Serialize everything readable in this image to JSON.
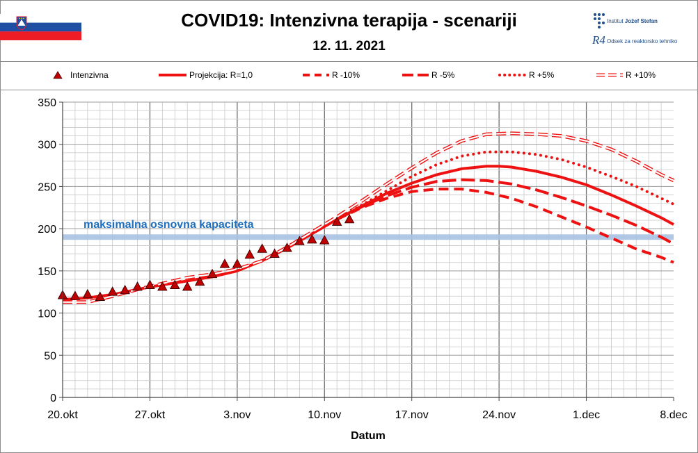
{
  "header": {
    "title": "COVID19: Intenzivna terapija - scenariji",
    "date": "12. 11. 2021",
    "flag_colors": [
      "#ffffff",
      "#1f4fa3",
      "#ee1c25"
    ],
    "logo": {
      "institute_prefix": "Institut ",
      "institute_name": "Jožef Stefan",
      "mark": "R4",
      "department": "Odsek za reaktorsko tehniko",
      "color": "#1f4e8c"
    }
  },
  "legend": [
    {
      "label": "Intenzivna",
      "style": "triangle"
    },
    {
      "label": "Projekcija: R=1,0",
      "style": "solid"
    },
    {
      "label": "R -10%",
      "style": "dash-short"
    },
    {
      "label": "R -5%",
      "style": "dash-long"
    },
    {
      "label": "R +5%",
      "style": "dotted"
    },
    {
      "label": "R +10%",
      "style": "hollow"
    }
  ],
  "chart_data": {
    "type": "line",
    "xlabel": "Datum",
    "ylabel": "",
    "ylim": [
      0,
      350
    ],
    "yticks": [
      0,
      50,
      100,
      150,
      200,
      250,
      300,
      350
    ],
    "xlim": [
      0,
      49
    ],
    "xticks": [
      {
        "x": 0,
        "label": "20.okt"
      },
      {
        "x": 7,
        "label": "27.okt"
      },
      {
        "x": 14,
        "label": "3.nov"
      },
      {
        "x": 21,
        "label": "10.nov"
      },
      {
        "x": 28,
        "label": "17.nov"
      },
      {
        "x": 35,
        "label": "24.nov"
      },
      {
        "x": 42,
        "label": "1.dec"
      },
      {
        "x": 49,
        "label": "8.dec"
      }
    ],
    "grid": true,
    "line_color": "#ee1111",
    "capacity": {
      "value": 190,
      "label": "maksimalna  osnovna  kapaciteta",
      "color": "#a9c2e3",
      "label_color": "#1f6fbf"
    },
    "observed": {
      "name": "Intenzivna",
      "x": [
        0,
        1,
        2,
        3,
        4,
        5,
        6,
        7,
        8,
        9,
        10,
        11,
        12,
        13,
        14,
        15,
        16,
        17,
        18,
        19,
        20,
        21,
        22,
        23
      ],
      "y": [
        121,
        120,
        122,
        119,
        125,
        127,
        131,
        133,
        131,
        133,
        131,
        137,
        146,
        158,
        158,
        169,
        176,
        170,
        177,
        185,
        187,
        186,
        208,
        211
      ]
    },
    "series": [
      {
        "name": "Projekcija: R=1,0",
        "style": "solid",
        "x": [
          0,
          2,
          4,
          7,
          10,
          12,
          14,
          16,
          18,
          20,
          22,
          24,
          26,
          28,
          30,
          32,
          34,
          35,
          36,
          38,
          40,
          42,
          44,
          46,
          48,
          49
        ],
        "y": [
          116,
          118,
          122,
          131,
          138,
          143,
          150,
          162,
          177,
          194,
          211,
          227,
          242,
          254,
          264,
          271,
          274,
          274,
          273,
          268,
          261,
          252,
          240,
          227,
          213,
          205
        ]
      },
      {
        "name": "R -10%",
        "style": "dash-short",
        "x": [
          22,
          24,
          26,
          28,
          30,
          32,
          34,
          36,
          38,
          40,
          42,
          44,
          46,
          48,
          49
        ],
        "y": [
          211,
          225,
          236,
          244,
          247,
          247,
          243,
          236,
          226,
          214,
          202,
          189,
          176,
          166,
          160
        ]
      },
      {
        "name": "R -5%",
        "style": "dash-long",
        "x": [
          22,
          24,
          26,
          28,
          30,
          32,
          34,
          36,
          38,
          40,
          42,
          44,
          46,
          48,
          49
        ],
        "y": [
          211,
          226,
          239,
          249,
          256,
          258,
          257,
          253,
          246,
          237,
          227,
          216,
          204,
          190,
          182
        ]
      },
      {
        "name": "R +5%",
        "style": "dotted",
        "x": [
          22,
          24,
          26,
          28,
          30,
          32,
          34,
          36,
          38,
          40,
          42,
          44,
          46,
          48,
          49
        ],
        "y": [
          211,
          228,
          245,
          262,
          276,
          286,
          291,
          291,
          288,
          282,
          273,
          262,
          250,
          236,
          229
        ]
      },
      {
        "name": "R +10%",
        "style": "hollow",
        "x": [
          0,
          2,
          4,
          6,
          8,
          10,
          12,
          14,
          16,
          18,
          20,
          22,
          24,
          26,
          28,
          30,
          32,
          34,
          36,
          38,
          40,
          42,
          44,
          46,
          48,
          49
        ],
        "y": [
          113,
          113,
          120,
          128,
          135,
          142,
          146,
          152,
          162,
          178,
          196,
          214,
          233,
          253,
          272,
          290,
          304,
          312,
          313,
          312,
          310,
          304,
          294,
          280,
          264,
          257
        ]
      }
    ]
  }
}
